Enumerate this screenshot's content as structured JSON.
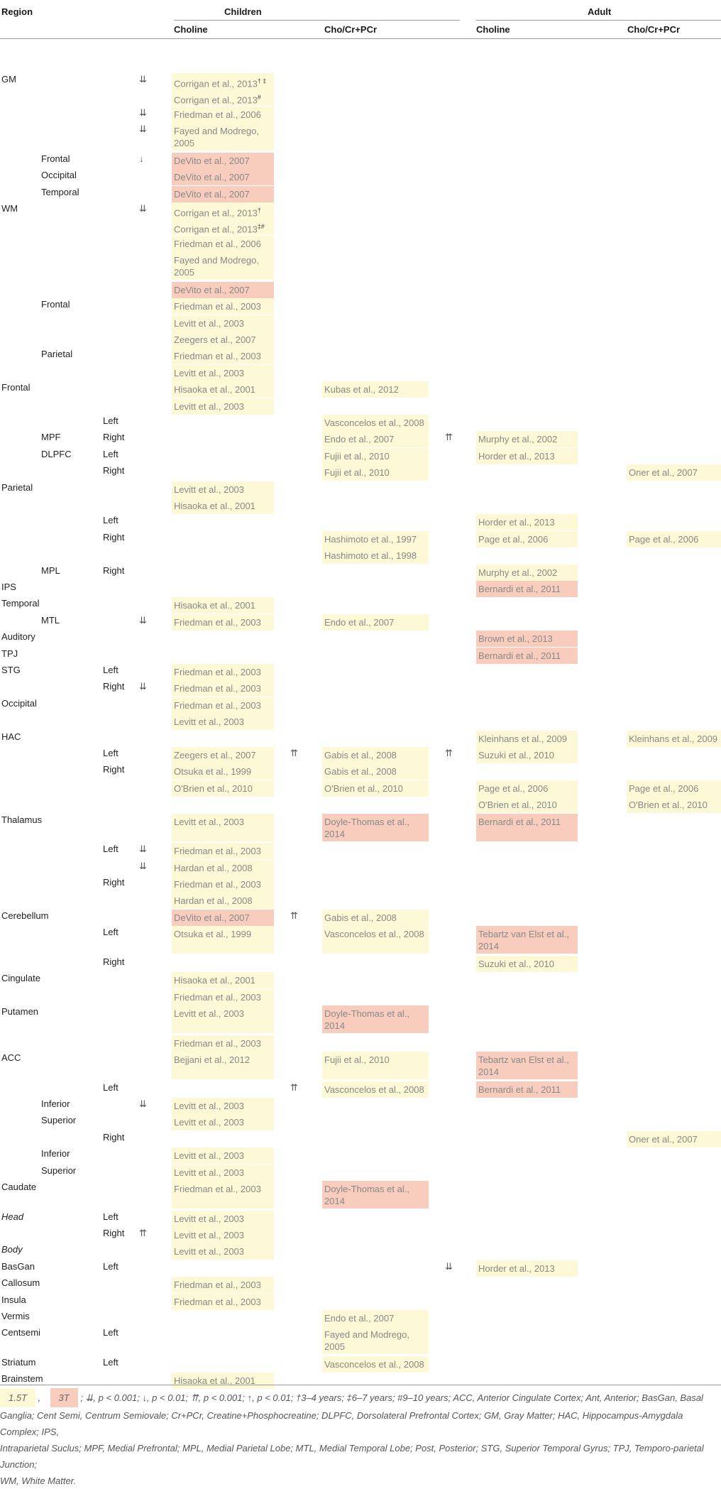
{
  "headers": {
    "region": "Region",
    "children": "Children",
    "adult": "Adult",
    "choline": "Choline",
    "ratio": "Cho/Cr+PCr"
  },
  "rows": [
    {
      "y": 70,
      "r1": "GM",
      "a1": "⇊",
      "cc": "Corrigan et al., 2013",
      "cc_sup": "† ‡",
      "cc_t": "15",
      "cc_h": 18
    },
    {
      "y": 88,
      "cc": "Corrigan et al., 2013",
      "cc_sup": "#",
      "cc_t": "15",
      "cc_h": 18
    },
    {
      "y": 106,
      "a1": "⇊",
      "cc": "Friedman et al., 2006",
      "cc_t": "15",
      "cc_h": 18
    },
    {
      "y": 124,
      "a1": "⇊",
      "cc": "Fayed and Modrego, 2005",
      "cc_t": "15",
      "cc_h": 30
    },
    {
      "y": 156,
      "r2": "Frontal",
      "a1": "↓",
      "cc": "DeVito et al., 2007",
      "cc_t": "3",
      "cc_h": 18
    },
    {
      "y": 174,
      "r2": "Occipital",
      "cc": "DeVito et al., 2007",
      "cc_t": "3",
      "cc_h": 18
    },
    {
      "y": 192,
      "r2": "Temporal",
      "cc": "DeVito et al., 2007",
      "cc_t": "3",
      "cc_h": 18
    },
    {
      "y": 210,
      "r1": "WM",
      "a1": "⇊",
      "cc": "Corrigan et al., 2013",
      "cc_sup": "†",
      "cc_t": "15",
      "cc_h": 18
    },
    {
      "y": 228,
      "cc": "Corrigan et al., 2013",
      "cc_sup": "‡#",
      "cc_t": "15",
      "cc_h": 18
    },
    {
      "y": 246,
      "cc": "Friedman et al., 2006",
      "cc_t": "15",
      "cc_h": 18
    },
    {
      "y": 264,
      "cc": "Fayed and Modrego, 2005",
      "cc_t": "15",
      "cc_h": 30
    },
    {
      "y": 296,
      "cc": "DeVito et al., 2007",
      "cc_t": "3",
      "cc_h": 18
    },
    {
      "y": 314,
      "r2": "Frontal",
      "cc": "Friedman et al., 2003",
      "cc_t": "15",
      "cc_h": 18
    },
    {
      "y": 332,
      "cc": "Levitt et al., 2003",
      "cc_t": "15",
      "cc_h": 18
    },
    {
      "y": 350,
      "cc": "Zeegers et al., 2007",
      "cc_t": "15",
      "cc_h": 18
    },
    {
      "y": 368,
      "r2": "Parietal",
      "cc": "Friedman et al., 2003",
      "cc_t": "15",
      "cc_h": 18
    },
    {
      "y": 386,
      "cc": "Levitt et al., 2003",
      "cc_t": "15",
      "cc_h": 18
    },
    {
      "y": 404,
      "r1": "Frontal",
      "cc": "Hisaoka et al., 2001",
      "cc_t": "15",
      "cc_h": 18,
      "cr": "Kubas et al., 2012",
      "cr_t": "15",
      "cr_h": 18
    },
    {
      "y": 422,
      "cc": "Levitt et al., 2003",
      "cc_t": "15",
      "cc_h": 18
    },
    {
      "y": 440,
      "r3": "Left",
      "cr": "Vasconcelos et al., 2008",
      "cr_t": "15",
      "cr_h": 18
    },
    {
      "y": 458,
      "r2": "MPF",
      "r3": "Right",
      "cr": "Endo et al., 2007",
      "cr_t": "15",
      "cr_h": 18,
      "a2": "⇈",
      "ac": "Murphy et al., 2002",
      "ac_t": "15",
      "ac_h": 18
    },
    {
      "y": 476,
      "r2": "DLPFC",
      "r3": "Left",
      "cr": "Fujii et al., 2010",
      "cr_t": "15",
      "cr_h": 18,
      "ac": "Horder et al., 2013",
      "ac_t": "15",
      "ac_h": 18
    },
    {
      "y": 494,
      "r3": "Right",
      "cr": "Fujii et al., 2010",
      "cr_t": "15",
      "cr_h": 18,
      "ar": "Oner et al., 2007",
      "ar_t": "15",
      "ar_h": 18
    },
    {
      "y": 512,
      "r1": "Parietal",
      "cc": "Levitt et al., 2003",
      "cc_t": "15",
      "cc_h": 18
    },
    {
      "y": 530,
      "cc": "Hisaoka et al., 2001",
      "cc_t": "15",
      "cc_h": 18
    },
    {
      "y": 548,
      "r3": "Left",
      "ac": "Horder et al., 2013",
      "ac_t": "15",
      "ac_h": 18
    },
    {
      "y": 566,
      "r3": "Right",
      "cr": "Hashimoto et al., 1997",
      "cr_t": "15",
      "cr_h": 18,
      "ac": "Page et al., 2006",
      "ac_t": "15",
      "ac_h": 18,
      "ar": "Page et al., 2006",
      "ar_t": "15",
      "ar_h": 18
    },
    {
      "y": 584,
      "cr": "Hashimoto et al., 1998",
      "cr_t": "15",
      "cr_h": 18
    },
    {
      "y": 602,
      "r2": "MPL",
      "r3": "Right",
      "ac": "Murphy et al., 2002",
      "ac_t": "15",
      "ac_h": 18
    },
    {
      "y": 620,
      "r1": "IPS",
      "ac": "Bernardi et al., 2011",
      "ac_t": "3",
      "ac_h": 18
    },
    {
      "y": 638,
      "r1": "Temporal",
      "cc": "Hisaoka et al., 2001",
      "cc_t": "15",
      "cc_h": 18
    },
    {
      "y": 656,
      "r2": "MTL",
      "a1": "⇊",
      "cc": "Friedman et al., 2003",
      "cc_t": "15",
      "cc_h": 18,
      "cr": "Endo et al., 2007",
      "cr_t": "15",
      "cr_h": 18
    },
    {
      "y": 674,
      "r1": "Auditory",
      "ac": "Brown et al., 2013",
      "ac_t": "3",
      "ac_h": 18
    },
    {
      "y": 692,
      "r1": "TPJ",
      "ac": "Bernardi et al., 2011",
      "ac_t": "3",
      "ac_h": 18
    },
    {
      "y": 710,
      "r1": "STG",
      "r3": "Left",
      "cc": "Friedman et al., 2003",
      "cc_t": "15",
      "cc_h": 18
    },
    {
      "y": 728,
      "r3": "Right",
      "a1": "⇊",
      "cc": "Friedman et al., 2003",
      "cc_t": "15",
      "cc_h": 18
    },
    {
      "y": 746,
      "r1": "Occipital",
      "cc": "Friedman et al., 2003",
      "cc_t": "15",
      "cc_h": 18
    },
    {
      "y": 764,
      "cc": "Levitt et al., 2003",
      "cc_t": "15",
      "cc_h": 18
    },
    {
      "y": 782,
      "r1": "HAC",
      "ac": "Kleinhans et al., 2009",
      "ac_t": "15",
      "ac_h": 18,
      "ar": "Kleinhans et al., 2009",
      "ar_t": "15",
      "ar_h": 18
    },
    {
      "y": 800,
      "r3": "Left",
      "cc": "Zeegers et al., 2007",
      "cc_t": "15",
      "cc_h": 18,
      "a1b": "⇈",
      "cr": "Gabis et al., 2008",
      "cr_t": "15",
      "cr_h": 18,
      "a2": "⇈",
      "ac": "Suzuki et al., 2010",
      "ac_t": "15",
      "ac_h": 18
    },
    {
      "y": 818,
      "r3": "Right",
      "cc": "Otsuka et al., 1999",
      "cc_t": "15",
      "cc_h": 18,
      "cr": "Gabis et al., 2008",
      "cr_t": "15",
      "cr_h": 18
    },
    {
      "y": 836,
      "cc": "O'Brien et al., 2010",
      "cc_t": "15",
      "cc_h": 18,
      "cr": "O'Brien et al., 2010",
      "cr_t": "15",
      "cr_h": 18,
      "ac": "Page et al., 2006",
      "ac_t": "15",
      "ac_h": 18,
      "ar": "Page et al., 2006",
      "ar_t": "15",
      "ar_h": 18
    },
    {
      "y": 854,
      "ac": "O'Brien et al., 2010",
      "ac_t": "15",
      "ac_h": 18,
      "ar": "O'Brien et al., 2010",
      "ar_t": "15",
      "ar_h": 18
    },
    {
      "y": 872,
      "r1": "Thalamus",
      "cc": "Levitt et al., 2003",
      "cc_t": "15",
      "cc_h": 30,
      "cr": "Doyle-Thomas et al., 2014",
      "cr_t": "3",
      "cr_h": 30,
      "ac": "Bernardi et al., 2011",
      "ac_t": "3",
      "ac_h": 30
    },
    {
      "y": 904,
      "r3": "Left",
      "a1": "⇊",
      "cc": "Friedman et al., 2003",
      "cc_t": "15",
      "cc_h": 18
    },
    {
      "y": 922,
      "a1": "⇊",
      "cc": "Hardan et al., 2008",
      "cc_t": "15",
      "cc_h": 18
    },
    {
      "y": 940,
      "r3": "Right",
      "cc": "Friedman et al., 2003",
      "cc_t": "15",
      "cc_h": 18
    },
    {
      "y": 958,
      "cc": "Hardan et al., 2008",
      "cc_t": "15",
      "cc_h": 18
    },
    {
      "y": 976,
      "r1": "Cerebellum",
      "cc": "DeVito et al., 2007",
      "cc_t": "3",
      "cc_h": 18,
      "a1b": "⇈",
      "cr": "Gabis et al., 2008",
      "cr_t": "15",
      "cr_h": 18
    },
    {
      "y": 994,
      "r3": "Left",
      "cc": "Otsuka et al., 1999",
      "cc_t": "15",
      "cc_h": 30,
      "cr": "Vasconcelos et al., 2008",
      "cr_t": "15",
      "cr_h": 30,
      "ac": "Tebartz van Elst et al., 2014",
      "ac_t": "3",
      "ac_h": 30
    },
    {
      "y": 1026,
      "r3": "Right",
      "ac": "Suzuki et al., 2010",
      "ac_t": "15",
      "ac_h": 18
    },
    {
      "y": 1044,
      "r1": "Cingulate",
      "cc": "Hisaoka et al., 2001",
      "cc_t": "15",
      "cc_h": 18
    },
    {
      "y": 1062,
      "cc": "Friedman et al., 2003",
      "cc_t": "15",
      "cc_h": 18
    },
    {
      "y": 1080,
      "r1": "Putamen",
      "cc": "Levitt et al., 2003",
      "cc_t": "15",
      "cc_h": 30,
      "cr": "Doyle-Thomas et al., 2014",
      "cr_t": "3",
      "cr_h": 30
    },
    {
      "y": 1112,
      "cc": "Friedman et al., 2003",
      "cc_t": "15",
      "cc_h": 18
    },
    {
      "y": 1130,
      "r1": "ACC",
      "cc": "Bejjani et al., 2012",
      "cc_t": "15",
      "cc_h": 30,
      "cr": "Fujii et al., 2010",
      "cr_t": "15",
      "cr_h": 30,
      "ac": "Tebartz van Elst et al., 2014",
      "ac_t": "3",
      "ac_h": 30
    },
    {
      "y": 1162,
      "r3": "Left",
      "a1b": "⇈",
      "cr": "Vasconcelos et al., 2008",
      "cr_t": "15",
      "cr_h": 18,
      "ac": "Bernardi et al., 2011",
      "ac_t": "3",
      "ac_h": 18
    },
    {
      "y": 1180,
      "r2": "Inferior",
      "a1": "⇊",
      "cc": "Levitt et al., 2003",
      "cc_t": "15",
      "cc_h": 18
    },
    {
      "y": 1198,
      "r2": "Superior",
      "cc": "Levitt et al., 2003",
      "cc_t": "15",
      "cc_h": 18
    },
    {
      "y": 1216,
      "r3": "Right",
      "ar": "Oner et al., 2007",
      "ar_t": "15",
      "ar_h": 18
    },
    {
      "y": 1234,
      "r2": "Inferior",
      "cc": "Levitt et al., 2003",
      "cc_t": "15",
      "cc_h": 18
    },
    {
      "y": 1252,
      "r2": "Superior",
      "cc": "Levitt et al., 2003",
      "cc_t": "15",
      "cc_h": 18
    },
    {
      "y": 1270,
      "r1": "Caudate",
      "cc": "Friedman et al., 2003",
      "cc_t": "15",
      "cc_h": 30,
      "cr": "Doyle-Thomas et al., 2014",
      "cr_t": "3",
      "cr_h": 30
    },
    {
      "y": 1302,
      "r1": "Head",
      "r1_it": true,
      "r3": "Left",
      "cc": "Levitt et al., 2003",
      "cc_t": "15",
      "cc_h": 18
    },
    {
      "y": 1320,
      "r3": "Right",
      "a1": "⇈",
      "cc": "Levitt et al., 2003",
      "cc_t": "15",
      "cc_h": 18
    },
    {
      "y": 1338,
      "r1": "Body",
      "r1_it": true,
      "cc": "Levitt et al., 2003",
      "cc_t": "15",
      "cc_h": 18
    },
    {
      "y": 1356,
      "r1": "BasGan",
      "r3": "Left",
      "a2": "⇊",
      "ac": "Horder et al., 2013",
      "ac_t": "15",
      "ac_h": 18
    },
    {
      "y": 1374,
      "r1": "Callosum",
      "cc": "Friedman et al., 2003",
      "cc_t": "15",
      "cc_h": 18
    },
    {
      "y": 1392,
      "r1": "Insula",
      "cc": "Friedman et al., 2003",
      "cc_t": "15",
      "cc_h": 18
    },
    {
      "y": 1410,
      "r1": "Vermis",
      "cr": "Endo et al., 2007",
      "cr_t": "15",
      "cr_h": 18
    },
    {
      "y": 1428,
      "r1": "Centsemi",
      "r3": "Left",
      "cr": "Fayed and Modrego, 2005",
      "cr_t": "15",
      "cr_h": 30
    },
    {
      "y": 1460,
      "r1": "Striatum",
      "r3": "Left",
      "cr": "Vasconcelos et al., 2008",
      "cr_t": "15",
      "cr_h": 18
    },
    {
      "y": 1478,
      "r1": "Brainstem",
      "cc": "Hisaoka et al., 2001",
      "cc_t": "15",
      "cc_h": 18
    }
  ],
  "footer": {
    "swatch_15": "1.5T",
    "comma1": ",",
    "swatch_3": "3T",
    "line1": "; ⇊, p < 0.001; ↓, p < 0.01; ⇈, p < 0.001; ↑, p < 0.01; †3–4 years; ‡6–7 years; #9–10 years; ACC, Anterior Cingulate Cortex; Ant, Anterior; BasGan, Basal",
    "line2": "Ganglia; Cent Semi, Centrum Semiovale; Cr+PCr, Creatine+Phosphocreatine; DLPFC, Dorsolateral Prefrontal Cortex; GM, Gray Matter; HAC, Hippocampus-Amygdala Complex; IPS,",
    "line3": "Intraparietal Suclus; MPF, Medial Prefrontal; MPL, Medial Parietal Lobe; MTL, Medial Temporal Lobe; Post, Posterior; STG, Superior Temporal Gyrus; TPJ, Temporo-parietal Junction;",
    "line4": "WM, White Matter."
  },
  "colors": {
    "tesla_15": "#fdf8d5",
    "tesla_3": "#f9cdbd",
    "rule": "#9a9a9a"
  }
}
